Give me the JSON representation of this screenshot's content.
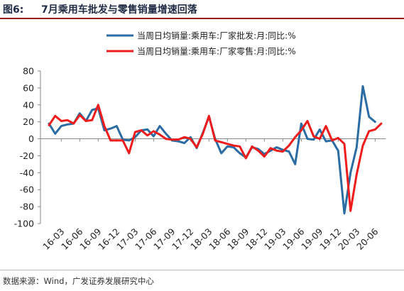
{
  "header": {
    "fig_label": "图6:",
    "title": "7月乘用车批发与零售销量增速回落"
  },
  "source": "数据来源：Wind，广发证券发展研究中心",
  "chart_data": {
    "type": "line",
    "title": "",
    "xlabel": "",
    "ylabel": "",
    "ylim": [
      -100,
      80
    ],
    "yticks": [
      -100,
      -80,
      -60,
      -40,
      -20,
      0,
      20,
      40,
      60,
      80
    ],
    "xtick_labels": [
      "16-03",
      "16-06",
      "16-09",
      "16-12",
      "17-03",
      "17-06",
      "17-09",
      "17-12",
      "18-03",
      "18-06",
      "18-09",
      "18-12",
      "19-03",
      "19-06",
      "19-09",
      "19-12",
      "20-03",
      "20-06"
    ],
    "x": [
      "16-01",
      "16-02",
      "16-03",
      "16-04",
      "16-05",
      "16-06",
      "16-07",
      "16-08",
      "16-09",
      "16-10",
      "16-11",
      "16-12",
      "17-01",
      "17-02",
      "17-03",
      "17-04",
      "17-05",
      "17-06",
      "17-07",
      "17-08",
      "17-09",
      "17-10",
      "17-11",
      "17-12",
      "18-01",
      "18-02",
      "18-03",
      "18-04",
      "18-05",
      "18-06",
      "18-07",
      "18-08",
      "18-09",
      "18-10",
      "18-11",
      "18-12",
      "19-01",
      "19-02",
      "19-03",
      "19-04",
      "19-05",
      "19-06",
      "19-07",
      "19-08",
      "19-09",
      "19-10",
      "19-11",
      "19-12",
      "20-01",
      "20-02",
      "20-03",
      "20-04",
      "20-05",
      "20-06",
      "20-07"
    ],
    "legend_position": "top",
    "grid": false,
    "series": [
      {
        "name": "当周日均销量:乘用车:厂家批发:月:同比:%",
        "color": "#2a6ca3",
        "values": [
          18,
          6,
          15,
          17,
          18,
          30,
          21,
          34,
          36,
          10,
          12,
          15,
          -1,
          -2,
          2,
          10,
          11,
          3,
          15,
          6,
          -2,
          -3,
          -5,
          2,
          -11,
          7,
          26,
          0,
          -17,
          -9,
          -10,
          -17,
          -22,
          -10,
          -12,
          -18,
          -14,
          -10,
          -13,
          -15,
          -30,
          18,
          0,
          -1,
          11,
          -3,
          -2,
          -14,
          -88,
          -40,
          -10,
          62,
          26,
          20,
          null
        ],
        "series_color_note": ""
      },
      {
        "name": "当周日均销量:乘用车:厂家零售:月:同比:%",
        "color": "#ee1c1c",
        "values": [
          16,
          27,
          21,
          22,
          18,
          28,
          21,
          22,
          40,
          15,
          -2,
          -2,
          -2,
          -17,
          8,
          10,
          4,
          9,
          5,
          0,
          -1,
          -1,
          2,
          0,
          -10,
          6,
          27,
          -2,
          -4,
          -6,
          -8,
          -9,
          -23,
          -9,
          -14,
          -21,
          -11,
          -14,
          -15,
          -8,
          2,
          10,
          21,
          3,
          0,
          15,
          -2,
          1,
          -6,
          -85,
          -42,
          -8,
          9,
          11,
          18
        ]
      }
    ]
  }
}
